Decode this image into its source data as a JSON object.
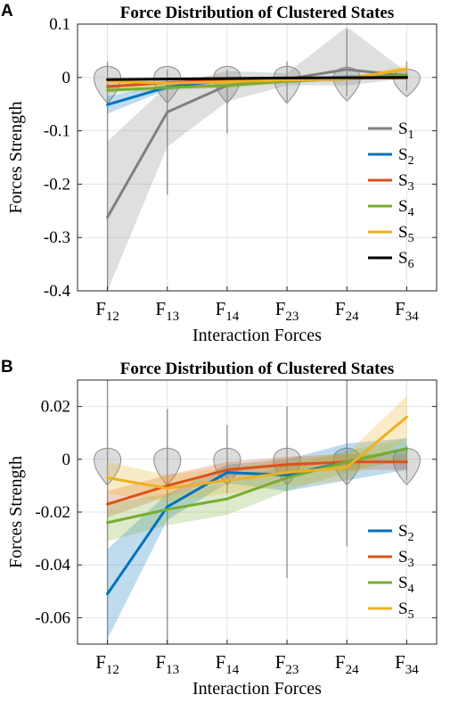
{
  "chart_data": [
    {
      "panel": "A",
      "type": "line",
      "title": "Force Distribution of Clustered States",
      "xlabel": "Interaction Forces",
      "ylabel": "Forces Strength",
      "categories": [
        {
          "base": "F",
          "sub": "12"
        },
        {
          "base": "F",
          "sub": "13"
        },
        {
          "base": "F",
          "sub": "14"
        },
        {
          "base": "F",
          "sub": "23"
        },
        {
          "base": "F",
          "sub": "24"
        },
        {
          "base": "F",
          "sub": "34"
        }
      ],
      "ylim": [
        -0.4,
        0.1
      ],
      "yticks": [
        -0.4,
        -0.3,
        -0.2,
        -0.1,
        0,
        0.1
      ],
      "ytick_labels": [
        "-0.4",
        "-0.3",
        "-0.2",
        "-0.1",
        "0",
        "0.1"
      ],
      "grid": true,
      "legend_position": "right",
      "series": [
        {
          "label": {
            "base": "S",
            "sub": "1"
          },
          "color": "#808080",
          "values": [
            -0.262,
            -0.065,
            -0.015,
            -0.003,
            0.015,
            0.003
          ],
          "band_lower": [
            -0.4,
            -0.13,
            -0.045,
            -0.015,
            -0.015,
            -0.002
          ],
          "band_upper": [
            -0.12,
            -0.015,
            0.012,
            0.008,
            0.095,
            0.01
          ]
        },
        {
          "label": {
            "base": "S",
            "sub": "2"
          },
          "color": "#0072BD",
          "values": [
            -0.051,
            -0.018,
            -0.005,
            -0.006,
            -0.001,
            0.004
          ],
          "band_lower": [
            -0.068,
            -0.023,
            -0.008,
            -0.01,
            -0.006,
            0.0
          ],
          "band_upper": [
            -0.035,
            -0.013,
            -0.002,
            -0.002,
            0.004,
            0.008
          ]
        },
        {
          "label": {
            "base": "S",
            "sub": "3"
          },
          "color": "#D95319",
          "values": [
            -0.017,
            -0.01,
            -0.004,
            -0.002,
            -0.001,
            -0.001
          ],
          "band_lower": [
            -0.022,
            -0.013,
            -0.006,
            -0.004,
            -0.003,
            -0.003
          ],
          "band_upper": [
            -0.012,
            -0.007,
            -0.002,
            0.0,
            0.001,
            0.001
          ]
        },
        {
          "label": {
            "base": "S",
            "sub": "4"
          },
          "color": "#77AC30",
          "values": [
            -0.024,
            -0.019,
            -0.015,
            -0.007,
            -0.001,
            0.004
          ],
          "band_lower": [
            -0.03,
            -0.024,
            -0.02,
            -0.011,
            -0.005,
            0.0
          ],
          "band_upper": [
            -0.018,
            -0.014,
            -0.01,
            -0.003,
            0.003,
            0.008
          ]
        },
        {
          "label": {
            "base": "S",
            "sub": "5"
          },
          "color": "#EDB120",
          "values": [
            -0.007,
            -0.011,
            -0.008,
            -0.005,
            -0.003,
            0.016
          ],
          "band_lower": [
            -0.012,
            -0.015,
            -0.012,
            -0.009,
            -0.007,
            0.009
          ],
          "band_upper": [
            -0.002,
            -0.007,
            -0.004,
            -0.001,
            0.001,
            0.023
          ]
        },
        {
          "label": {
            "base": "S",
            "sub": "6"
          },
          "color": "#000000",
          "values": [
            -0.004,
            -0.003,
            -0.002,
            -0.001,
            -0.0005,
            0.0
          ],
          "band_lower": [
            -0.006,
            -0.005,
            -0.004,
            -0.003,
            -0.002,
            -0.002
          ],
          "band_upper": [
            -0.002,
            -0.001,
            0.0,
            0.001,
            0.001,
            0.002
          ]
        }
      ],
      "violins": [
        {
          "min": -0.4,
          "max": 0.03
        },
        {
          "min": -0.22,
          "max": 0.015
        },
        {
          "min": -0.105,
          "max": 0.015
        },
        {
          "min": -0.045,
          "max": 0.03
        },
        {
          "min": -0.035,
          "max": 0.09
        },
        {
          "min": -0.025,
          "max": 0.03
        }
      ]
    },
    {
      "panel": "B",
      "type": "line",
      "title": "Force Distribution of Clustered States",
      "xlabel": "Interaction Forces",
      "ylabel": "Forces Strength",
      "categories": [
        {
          "base": "F",
          "sub": "12"
        },
        {
          "base": "F",
          "sub": "13"
        },
        {
          "base": "F",
          "sub": "14"
        },
        {
          "base": "F",
          "sub": "23"
        },
        {
          "base": "F",
          "sub": "24"
        },
        {
          "base": "F",
          "sub": "34"
        }
      ],
      "ylim": [
        -0.07,
        0.03
      ],
      "yticks": [
        -0.06,
        -0.04,
        -0.02,
        0,
        0.02
      ],
      "ytick_labels": [
        "-0.06",
        "-0.04",
        "-0.02",
        "0",
        "0.02"
      ],
      "grid": true,
      "legend_position": "bottom-right",
      "series": [
        {
          "label": {
            "base": "S",
            "sub": "2"
          },
          "color": "#0072BD",
          "values": [
            -0.051,
            -0.018,
            -0.005,
            -0.006,
            -0.001,
            0.004
          ],
          "band_lower": [
            -0.068,
            -0.023,
            -0.009,
            -0.012,
            -0.008,
            -0.004
          ],
          "band_upper": [
            -0.034,
            -0.013,
            -0.002,
            0.0,
            0.006,
            0.008
          ]
        },
        {
          "label": {
            "base": "S",
            "sub": "3"
          },
          "color": "#D95319",
          "values": [
            -0.017,
            -0.01,
            -0.004,
            -0.002,
            -0.001,
            -0.001
          ],
          "band_lower": [
            -0.022,
            -0.014,
            -0.007,
            -0.005,
            -0.004,
            -0.004
          ],
          "band_upper": [
            -0.012,
            -0.006,
            -0.001,
            0.001,
            0.002,
            0.002
          ]
        },
        {
          "label": {
            "base": "S",
            "sub": "4"
          },
          "color": "#77AC30",
          "values": [
            -0.024,
            -0.019,
            -0.015,
            -0.007,
            -0.001,
            0.004
          ],
          "band_lower": [
            -0.031,
            -0.025,
            -0.021,
            -0.012,
            -0.005,
            0.0
          ],
          "band_upper": [
            -0.017,
            -0.013,
            -0.009,
            -0.002,
            0.003,
            0.008
          ]
        },
        {
          "label": {
            "base": "S",
            "sub": "5"
          },
          "color": "#EDB120",
          "values": [
            -0.007,
            -0.011,
            -0.008,
            -0.005,
            -0.003,
            0.016
          ],
          "band_lower": [
            -0.013,
            -0.016,
            -0.013,
            -0.01,
            -0.008,
            0.008
          ],
          "band_upper": [
            -0.001,
            -0.006,
            -0.003,
            0.0,
            0.002,
            0.024
          ]
        }
      ],
      "violins": [
        {
          "min": -0.07,
          "max": 0.03
        },
        {
          "min": -0.07,
          "max": 0.019
        },
        {
          "min": -0.013,
          "max": 0.013
        },
        {
          "min": -0.045,
          "max": 0.02
        },
        {
          "min": -0.033,
          "max": 0.03
        },
        {
          "min": -0.008,
          "max": 0.005
        }
      ]
    }
  ]
}
